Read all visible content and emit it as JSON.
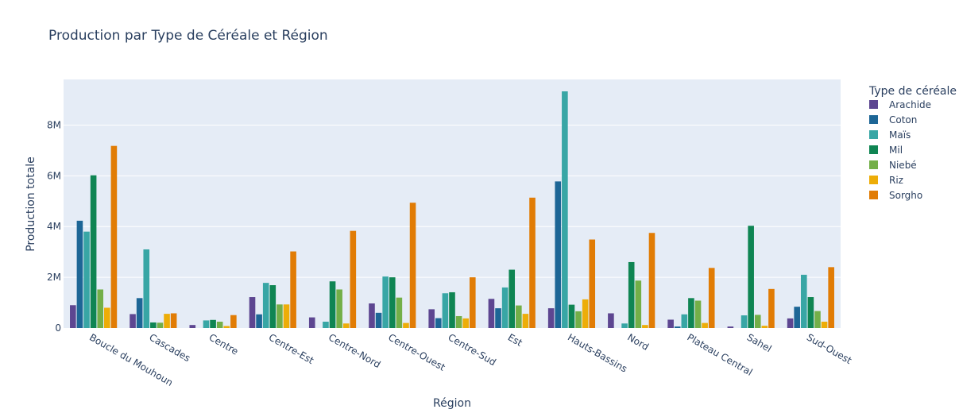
{
  "chart_data": {
    "type": "bar",
    "title": "Production par Type de Céréale et Région",
    "xlabel": "Région",
    "ylabel": "Production totale",
    "legend_title": "Type de céréale",
    "legend_position": "right",
    "grid": true,
    "ylim": [
      0,
      9800000
    ],
    "yticks": [
      0,
      2000000,
      4000000,
      6000000,
      8000000
    ],
    "ytick_labels": [
      "0",
      "2M",
      "4M",
      "6M",
      "8M"
    ],
    "categories": [
      "Boucle du Mouhoun",
      "Cascades",
      "Centre",
      "Centre-Est",
      "Centre-Nord",
      "Centre-Ouest",
      "Centre-Sud",
      "Est",
      "Hauts-Bassins",
      "Nord",
      "Plateau Central",
      "Sahel",
      "Sud-Ouest"
    ],
    "series": [
      {
        "name": "Arachide",
        "color": "#5d4691",
        "values": [
          900000,
          550000,
          120000,
          1220000,
          420000,
          970000,
          740000,
          1150000,
          780000,
          580000,
          330000,
          60000,
          380000
        ]
      },
      {
        "name": "Coton",
        "color": "#1d6696",
        "values": [
          4230000,
          1180000,
          0,
          540000,
          0,
          600000,
          390000,
          780000,
          5780000,
          0,
          60000,
          0,
          840000
        ]
      },
      {
        "name": "Maïs",
        "color": "#38a6a5",
        "values": [
          3800000,
          3100000,
          300000,
          1780000,
          250000,
          2030000,
          1370000,
          1600000,
          9330000,
          180000,
          540000,
          500000,
          2100000
        ]
      },
      {
        "name": "Mil",
        "color": "#0f8553",
        "values": [
          6020000,
          220000,
          320000,
          1690000,
          1840000,
          2000000,
          1410000,
          2300000,
          920000,
          2600000,
          1180000,
          4030000,
          1220000
        ]
      },
      {
        "name": "Niebé",
        "color": "#73af48",
        "values": [
          1520000,
          210000,
          250000,
          930000,
          1520000,
          1200000,
          470000,
          890000,
          660000,
          1870000,
          1080000,
          520000,
          670000
        ]
      },
      {
        "name": "Riz",
        "color": "#edad08",
        "values": [
          800000,
          560000,
          80000,
          930000,
          180000,
          200000,
          380000,
          560000,
          1130000,
          120000,
          200000,
          90000,
          250000
        ]
      },
      {
        "name": "Sorgho",
        "color": "#e17c05",
        "values": [
          7180000,
          580000,
          510000,
          3020000,
          3830000,
          4940000,
          2000000,
          5140000,
          3490000,
          3750000,
          2370000,
          1540000,
          2400000
        ]
      }
    ]
  }
}
